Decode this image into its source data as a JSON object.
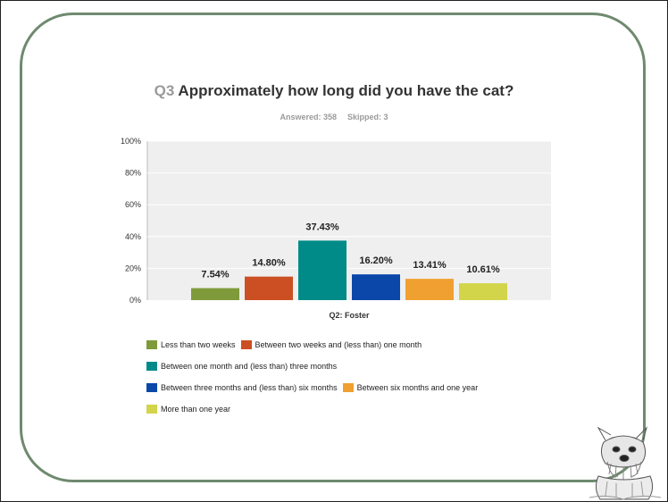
{
  "header": {
    "question_number": "Q3",
    "question_text": "Approximately how long did you have the cat?",
    "answered": "Answered: 358",
    "skipped": "Skipped: 3"
  },
  "chart_data": {
    "type": "bar",
    "categories": [
      "Q2: Foster"
    ],
    "series": [
      {
        "name": "Less than two weeks",
        "values": [
          7.54
        ],
        "label": "7.54%",
        "color": "#7f9a3a"
      },
      {
        "name": "Between two weeks and (less than) one month",
        "values": [
          14.8
        ],
        "label": "14.80%",
        "color": "#cc4f24"
      },
      {
        "name": "Between one month and (less than) three months",
        "values": [
          37.43
        ],
        "label": "37.43%",
        "color": "#008b89"
      },
      {
        "name": "Between three months and (less than) six months",
        "values": [
          16.2
        ],
        "label": "16.20%",
        "color": "#0a47a8"
      },
      {
        "name": "Between six months and one year",
        "values": [
          13.41
        ],
        "label": "13.41%",
        "color": "#f0a030"
      },
      {
        "name": "More than one year",
        "values": [
          10.61
        ],
        "label": "10.61%",
        "color": "#d2d44a"
      }
    ],
    "yticks": [
      "0%",
      "20%",
      "40%",
      "60%",
      "80%",
      "100%"
    ],
    "ylim": [
      0,
      100
    ],
    "grid": true,
    "legend_placement": "bottom"
  },
  "colors": {
    "frame": "#6f8a6f",
    "plot_background": "#efefef",
    "gridline": "#ffffff"
  },
  "icons": {
    "decoration": "schnauzer-dog-sketch"
  }
}
